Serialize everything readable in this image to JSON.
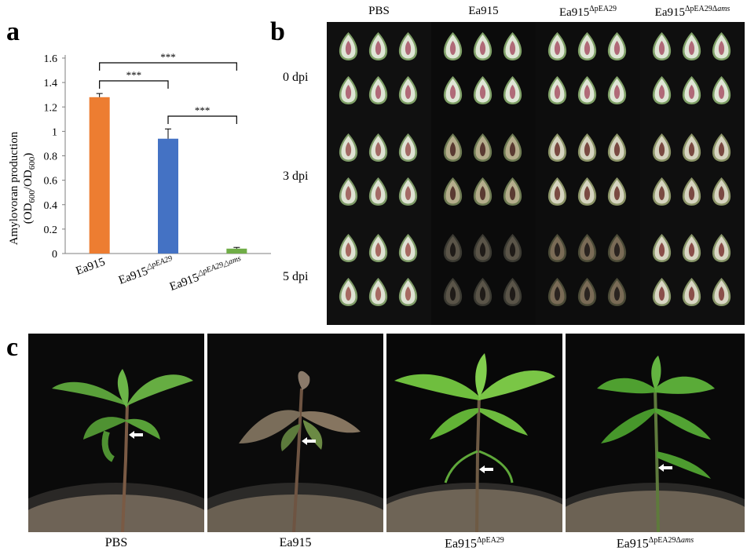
{
  "figure": {
    "panel_a": {
      "letter": "a"
    },
    "panel_b": {
      "letter": "b",
      "columns": [
        {
          "base": "PBS",
          "sup": ""
        },
        {
          "base": "Ea915",
          "sup": ""
        },
        {
          "base": "Ea915",
          "sup": "ΔpEA29"
        },
        {
          "base": "Ea915",
          "sup": "ΔpEA29Δ",
          "sup_italic": "ams"
        }
      ],
      "rows": [
        "0 dpi",
        "3 dpi",
        "5 dpi"
      ]
    },
    "panel_c": {
      "letter": "c",
      "captions": [
        {
          "base": "PBS",
          "sup": ""
        },
        {
          "base": "Ea915",
          "sup": ""
        },
        {
          "base": "Ea915",
          "sup": "ΔpEA29"
        },
        {
          "base": "Ea915",
          "sup": "ΔpEA29Δ",
          "sup_italic": "ams"
        }
      ]
    }
  },
  "chart_data": {
    "type": "bar",
    "categories": [
      "Ea915",
      "Ea915△pEA29",
      "Ea915△pEA29△ams"
    ],
    "category_labels": [
      {
        "base": "Ea915",
        "sup": ""
      },
      {
        "base": "Ea915",
        "sup": "△pEA29"
      },
      {
        "base": "Ea915",
        "sup": "△pEA29△ams"
      }
    ],
    "values": [
      1.28,
      0.94,
      0.04
    ],
    "errors": [
      0.03,
      0.08,
      0.01
    ],
    "colors": [
      "#ED7D31",
      "#4472C4",
      "#70AD47"
    ],
    "ylabel_line1": "Amylovoran production",
    "ylabel_line2": {
      "open": "(OD",
      "sub1": "600",
      "mid": "/OD",
      "sub2": "600",
      "close": ")"
    },
    "ylim": [
      0,
      1.6
    ],
    "yticks": [
      "0",
      "0.2",
      "0.4",
      "0.6",
      "0.8",
      "1",
      "1.2",
      "1.4",
      "1.6"
    ],
    "significance": [
      {
        "from": 0,
        "to": 2,
        "label": "***"
      },
      {
        "from": 0,
        "to": 1,
        "label": "***"
      },
      {
        "from": 1,
        "to": 2,
        "label": "***"
      }
    ]
  }
}
